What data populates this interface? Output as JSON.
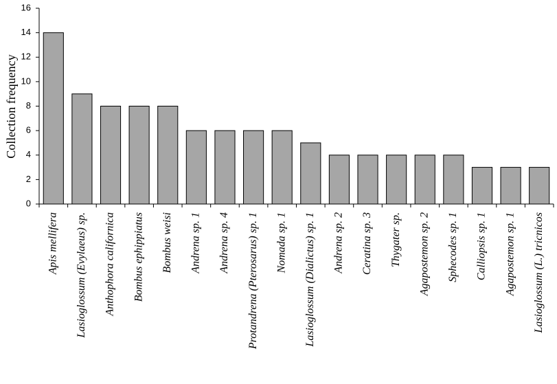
{
  "chart_data": {
    "type": "bar",
    "y_label": "Collection frequency",
    "categories": [
      "Apis mellifera",
      "Lasioglossum (Evylaeus) sp.",
      "Anthophora californica",
      "Bombus ephippiatus",
      "Bombus weisi",
      "Andrena sp. 1",
      "Andrena sp. 4",
      "Protandrena (Pterosarus) sp. 1",
      "Nomada sp. 1",
      "Lasioglossum (Dialictus) sp. 1",
      "Andrena sp. 2",
      "Ceratina sp. 3",
      "Thygater sp.",
      "Agapostemon sp. 2",
      "Sphecodes sp. 1",
      "Calliopsis sp. 1",
      "Agapostemon sp. 1",
      "Lasioglossum (L.) tricnicos"
    ],
    "values": [
      14,
      9,
      8,
      8,
      8,
      6,
      6,
      6,
      6,
      5,
      4,
      4,
      4,
      4,
      4,
      3,
      3,
      3
    ],
    "color": "#a6a6a6",
    "ylim": [
      0,
      16
    ],
    "yticks": [
      0,
      2,
      4,
      6,
      8,
      10,
      12,
      14,
      16
    ],
    "grid": false
  }
}
